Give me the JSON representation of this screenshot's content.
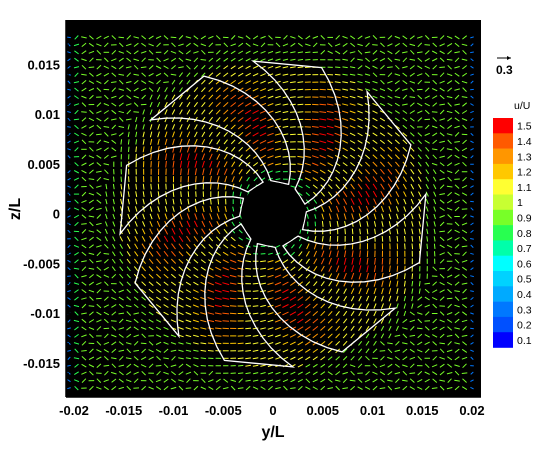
{
  "chart_data": {
    "type": "vector_field",
    "title": "",
    "xlabel": "y/L",
    "ylabel": "z/L",
    "xlim": [
      -0.021,
      0.021
    ],
    "ylim": [
      -0.018,
      0.0185
    ],
    "x_ticks": [
      -0.02,
      -0.015,
      -0.01,
      -0.005,
      0,
      0.005,
      0.01,
      0.015,
      0.02
    ],
    "x_tick_labels": [
      "-0.02",
      "-0.015",
      "-0.01",
      "-0.005",
      "0",
      "0.005",
      "0.01",
      "0.015",
      "0.02"
    ],
    "y_ticks": [
      -0.015,
      -0.01,
      -0.005,
      0,
      0.005,
      0.01,
      0.015
    ],
    "y_tick_labels": [
      "-0.015",
      "-0.01",
      "-0.005",
      "0",
      "0.005",
      "0.01",
      "0.015"
    ],
    "background": "#000000",
    "reference_vector": {
      "label": "0.3",
      "value": 0.3
    },
    "colorbar": {
      "title": "u/U",
      "levels": [
        1.5,
        1.4,
        1.3,
        1.2,
        1.1,
        1,
        0.9,
        0.8,
        0.7,
        0.6,
        0.5,
        0.4,
        0.3,
        0.2,
        0.1
      ],
      "labels": [
        "1.5",
        "1.4",
        "1.3",
        "1.2",
        "1.1",
        "1",
        "0.9",
        "0.8",
        "0.7",
        "0.6",
        "0.5",
        "0.4",
        "0.3",
        "0.2",
        "0.1"
      ],
      "colors": [
        "#ff0000",
        "#ff5a00",
        "#ff9600",
        "#ffc800",
        "#ffff32",
        "#c8ff32",
        "#78ff28",
        "#28ff50",
        "#00ffaa",
        "#00ffff",
        "#00d2ff",
        "#00aaff",
        "#0078ff",
        "#0050ff",
        "#0000ff"
      ]
    },
    "impeller": {
      "blade_count": 8,
      "hub_radius": 0.0032,
      "tip_radius": 0.0155,
      "blade_outline_color": "#ffffff"
    },
    "velocity_field": {
      "description_units": "u/U",
      "hub_speed": 0.8,
      "blade_zone_speed": 1.2,
      "peak_speed": 1.5,
      "outer_speed": 0.95,
      "domain_half_width": 0.02
    }
  }
}
